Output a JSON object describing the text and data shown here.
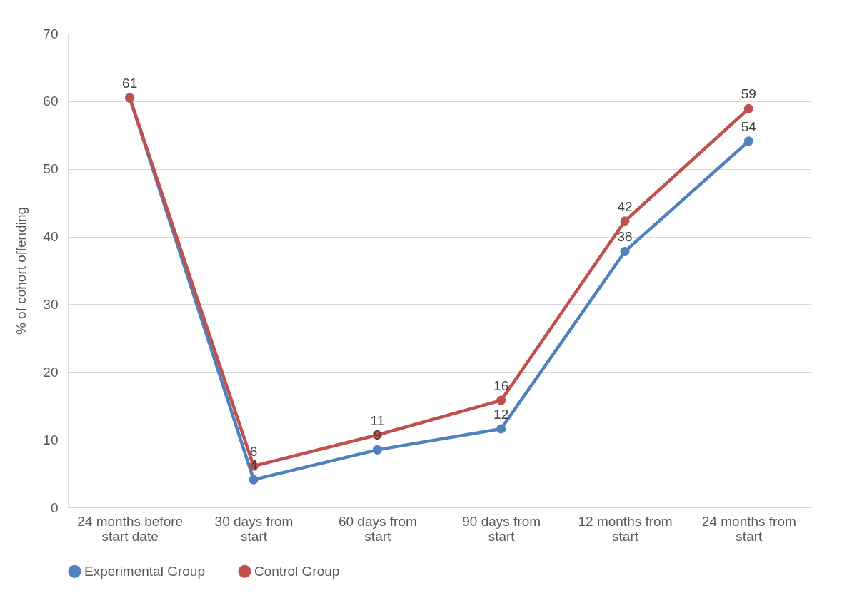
{
  "chart_data": {
    "type": "line",
    "ylabel": "% of cohort offending",
    "categories": [
      "24 months before start date",
      "30 days from start",
      "60 days from start",
      "90 days from start",
      "12 months from start",
      "24 months from start"
    ],
    "series": [
      {
        "name": "Experimental Group",
        "color": "#4f81bd",
        "values": [
          60.5,
          4.1,
          8.5,
          11.6,
          37.8,
          54.1
        ],
        "value_labels": [
          null,
          "4",
          "9",
          "12",
          "38",
          "54"
        ]
      },
      {
        "name": "Control Group",
        "color": "#c0504d",
        "values": [
          60.5,
          6.1,
          10.7,
          15.8,
          42.3,
          58.9
        ],
        "value_labels": [
          "61",
          "6",
          "11",
          "16",
          "42",
          "59"
        ]
      }
    ],
    "ylim": [
      0,
      70
    ],
    "yticks": [
      0,
      10,
      20,
      30,
      40,
      50,
      60,
      70
    ],
    "grid": "y",
    "legend": "bottom",
    "marker": "circle",
    "line_style": "solid"
  }
}
